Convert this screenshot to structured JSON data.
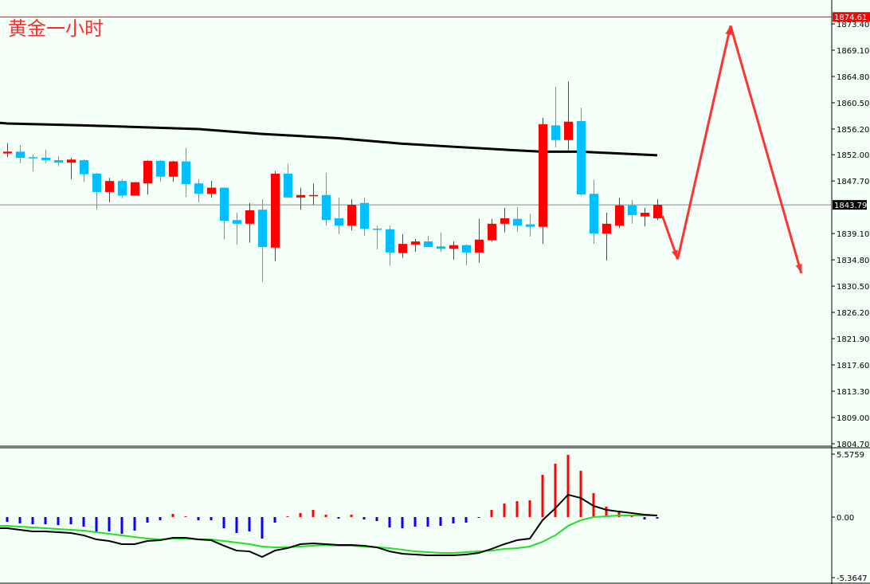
{
  "chart_data": [
    {
      "type": "candlestick",
      "title": "黄金一小时",
      "colors": {
        "up": "#ff0000",
        "down": "#00bfff",
        "ma": "#000000",
        "projection": "#ff3333",
        "level": "#ff0000",
        "current": "#7f8c8d"
      },
      "ohlc": [
        [
          1852.2,
          1853.9,
          1851.6,
          1852.5
        ],
        [
          1852.5,
          1853.6,
          1850.6,
          1851.5
        ],
        [
          1851.6,
          1852.0,
          1849.3,
          1851.4
        ],
        [
          1851.5,
          1852.8,
          1850.6,
          1851.1
        ],
        [
          1851.1,
          1851.8,
          1850.1,
          1850.7
        ],
        [
          1850.7,
          1851.5,
          1848.0,
          1851.2
        ],
        [
          1851.1,
          1851.2,
          1847.5,
          1848.8
        ],
        [
          1848.9,
          1849.0,
          1843.0,
          1845.9
        ],
        [
          1845.9,
          1848.2,
          1844.2,
          1847.7
        ],
        [
          1847.7,
          1848.0,
          1844.9,
          1845.3
        ],
        [
          1845.3,
          1847.5,
          1845.3,
          1847.5
        ],
        [
          1847.3,
          1851.1,
          1845.5,
          1851.0
        ],
        [
          1851.0,
          1851.1,
          1847.6,
          1848.4
        ],
        [
          1848.4,
          1851.0,
          1847.6,
          1850.9
        ],
        [
          1850.9,
          1853.1,
          1845.1,
          1847.2
        ],
        [
          1847.3,
          1848.0,
          1844.2,
          1845.6
        ],
        [
          1845.6,
          1847.7,
          1845.0,
          1846.6
        ],
        [
          1846.6,
          1846.6,
          1838.1,
          1841.2
        ],
        [
          1841.3,
          1842.5,
          1837.3,
          1840.7
        ],
        [
          1840.7,
          1844.1,
          1837.6,
          1842.9
        ],
        [
          1843.0,
          1844.7,
          1831.2,
          1836.9
        ],
        [
          1836.8,
          1849.3,
          1834.6,
          1848.9
        ],
        [
          1848.9,
          1850.5,
          1845.0,
          1845.0
        ],
        [
          1845.0,
          1846.6,
          1843.0,
          1845.4
        ],
        [
          1845.3,
          1847.3,
          1843.8,
          1845.4
        ],
        [
          1845.4,
          1849.0,
          1840.4,
          1841.3
        ],
        [
          1841.6,
          1845.0,
          1839.0,
          1840.4
        ],
        [
          1840.4,
          1844.7,
          1839.6,
          1843.8
        ],
        [
          1844.1,
          1845.0,
          1838.7,
          1839.9
        ],
        [
          1839.9,
          1840.4,
          1836.5,
          1839.8
        ],
        [
          1839.8,
          1840.4,
          1833.8,
          1836.0
        ],
        [
          1835.9,
          1839.0,
          1835.1,
          1837.4
        ],
        [
          1837.3,
          1838.2,
          1836.1,
          1837.8
        ],
        [
          1837.8,
          1838.7,
          1836.9,
          1836.9
        ],
        [
          1837.0,
          1839.3,
          1836.1,
          1836.6
        ],
        [
          1836.6,
          1837.8,
          1834.8,
          1837.2
        ],
        [
          1837.2,
          1837.3,
          1833.9,
          1836.0
        ],
        [
          1836.0,
          1841.5,
          1834.3,
          1838.1
        ],
        [
          1838.0,
          1841.5,
          1837.8,
          1840.7
        ],
        [
          1840.7,
          1843.3,
          1839.3,
          1841.6
        ],
        [
          1841.5,
          1843.4,
          1839.4,
          1840.4
        ],
        [
          1840.6,
          1842.3,
          1838.6,
          1840.2
        ],
        [
          1840.2,
          1858.0,
          1837.4,
          1857.0
        ],
        [
          1856.8,
          1863.1,
          1853.2,
          1854.4
        ],
        [
          1854.4,
          1864.0,
          1852.7,
          1857.4
        ],
        [
          1857.5,
          1859.7,
          1845.3,
          1845.5
        ],
        [
          1845.6,
          1847.9,
          1837.4,
          1839.1
        ],
        [
          1839.1,
          1842.5,
          1834.7,
          1840.7
        ],
        [
          1840.4,
          1844.9,
          1840.0,
          1843.7
        ],
        [
          1843.7,
          1844.6,
          1840.7,
          1842.1
        ],
        [
          1841.9,
          1843.3,
          1840.3,
          1842.5
        ],
        [
          1841.6,
          1844.7,
          1841.3,
          1843.8
        ]
      ],
      "ma": [
        [
          0,
          1857.2
        ],
        [
          1,
          1857.1
        ],
        [
          7,
          1856.8
        ],
        [
          16,
          1856.2
        ],
        [
          21,
          1855.4
        ],
        [
          27,
          1854.7
        ],
        [
          32,
          1853.8
        ],
        [
          36,
          1853.3
        ],
        [
          41,
          1852.7
        ],
        [
          43,
          1852.5
        ],
        [
          46,
          1852.5
        ],
        [
          49,
          1852.2
        ],
        [
          52,
          1851.9
        ]
      ],
      "current_price": "1843.79",
      "marked_level": "1874.61",
      "y_range": [
        1804.7,
        1873.4
      ],
      "y_ticks": [
        "1873.40",
        "1869.10",
        "1864.80",
        "1860.50",
        "1856.20",
        "1852.00",
        "1847.70",
        "1839.10",
        "1834.80",
        "1830.50",
        "1826.20",
        "1821.90",
        "1817.60",
        "1813.30",
        "1809.00",
        "1804.70"
      ],
      "projection": [
        [
          52.4,
          1842.0
        ],
        [
          53.6,
          1834.9
        ],
        [
          57.75,
          1873.1
        ],
        [
          63.3,
          1832.6
        ]
      ]
    },
    {
      "type": "bar",
      "colors": {
        "positive": "#ff0000",
        "negative": "#0000ff",
        "main_line": "#000000",
        "signal_line": "#22e022"
      },
      "y_ticks": [
        "5.5759",
        "0.00",
        "-5.3647"
      ],
      "y_range": [
        -5.3647,
        5.5759
      ],
      "histogram": [
        -0.42,
        -0.56,
        -0.64,
        -0.64,
        -0.71,
        -0.64,
        -0.85,
        -1.27,
        -1.27,
        -1.48,
        -1.2,
        -0.49,
        -0.28,
        0.28,
        0.07,
        -0.28,
        -0.28,
        -0.99,
        -1.41,
        -1.27,
        -1.91,
        -0.49,
        0.07,
        0.35,
        0.64,
        0.21,
        -0.14,
        0.21,
        -0.21,
        -0.35,
        -0.92,
        -0.99,
        -0.85,
        -0.85,
        -0.78,
        -0.56,
        -0.49,
        -0.07,
        0.64,
        1.2,
        1.41,
        1.48,
        3.74,
        4.73,
        5.51,
        4.1,
        2.12,
        0.92,
        0.56,
        0.21,
        -0.21,
        -0.14
      ],
      "main_line": [
        -0.99,
        -1.13,
        -1.27,
        -1.27,
        -1.34,
        -1.41,
        -1.62,
        -1.98,
        -2.12,
        -2.4,
        -2.4,
        -2.12,
        -2.05,
        -1.84,
        -1.84,
        -1.98,
        -2.05,
        -2.54,
        -2.97,
        -3.04,
        -3.53,
        -2.97,
        -2.75,
        -2.4,
        -2.33,
        -2.4,
        -2.47,
        -2.47,
        -2.54,
        -2.68,
        -3.04,
        -3.25,
        -3.32,
        -3.39,
        -3.39,
        -3.39,
        -3.32,
        -3.18,
        -2.82,
        -2.4,
        -2.05,
        -1.91,
        -0.28,
        0.78,
        1.98,
        1.69,
        0.99,
        0.64,
        0.49,
        0.35,
        0.21,
        0.14
      ],
      "signal_line": [
        -0.78,
        -0.85,
        -0.92,
        -0.99,
        -1.06,
        -1.13,
        -1.2,
        -1.34,
        -1.48,
        -1.62,
        -1.77,
        -1.91,
        -1.98,
        -1.91,
        -1.91,
        -1.98,
        -1.98,
        -2.12,
        -2.26,
        -2.4,
        -2.61,
        -2.68,
        -2.68,
        -2.61,
        -2.54,
        -2.47,
        -2.54,
        -2.54,
        -2.61,
        -2.68,
        -2.75,
        -2.89,
        -3.04,
        -3.11,
        -3.18,
        -3.18,
        -3.11,
        -3.04,
        -2.97,
        -2.82,
        -2.75,
        -2.61,
        -2.19,
        -1.62,
        -0.78,
        -0.28,
        0.0,
        0.07,
        0.14,
        0.14,
        0.14,
        0.14
      ]
    }
  ]
}
